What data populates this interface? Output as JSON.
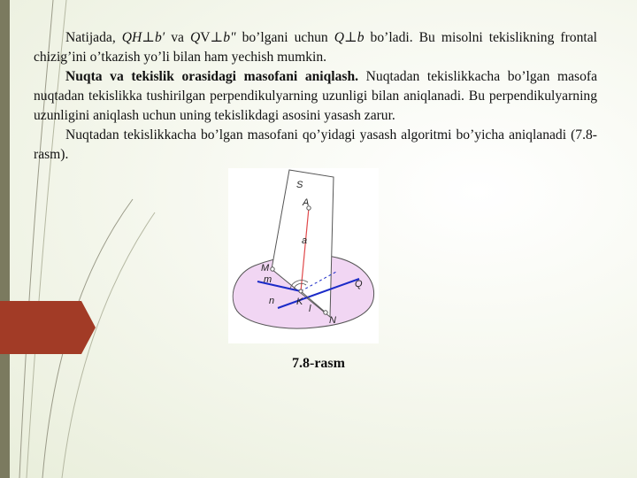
{
  "paragraph1": {
    "s1": "Natijada, ",
    "m1": "QH⊥b′",
    "s2": " va ",
    "m2a": "Q",
    "m2b": "V⊥",
    "m2c": "b\"",
    "s3": " bo’lgani uchun ",
    "m3": "Q⊥b",
    "s4": " bo’ladi. Bu misolni tekislikning frontal chizig’ini o’tkazish yo’li bilan ham yechish mumkin."
  },
  "paragraph2": {
    "heading": "Nuqta va tekislik orasidagi masofani aniqlash.",
    "body": " Nuqtadan tekislikkacha bo’lgan masofa nuqtadan tekislikka tushirilgan perpendikulyarning uzunligi bilan aniqlanadi. Bu perpendikulyarning uzunligini aniqlash uchun uning tekislikdagi asosini yasash zarur."
  },
  "paragraph3": "Nuqtadan tekislikkacha bo’lgan masofani qo’yidagi yasash algoritmi bo’yicha aniqlanadi (7.8-rasm).",
  "figure": {
    "labels": {
      "S": "S",
      "A": "A",
      "a": "a",
      "M": "M",
      "m": "m",
      "Q": "Q",
      "n": "n",
      "K": "K",
      "l": "l",
      "N": "N"
    },
    "colors": {
      "plane_fill": "#f1d6f3",
      "line_blue": "#1b2bc8",
      "line_red": "#e0484a",
      "outline": "#555555"
    }
  },
  "caption": "7.8-rasm",
  "theme": {
    "accent_tab": "#a23b26",
    "left_bar": "#7b7a5f"
  }
}
